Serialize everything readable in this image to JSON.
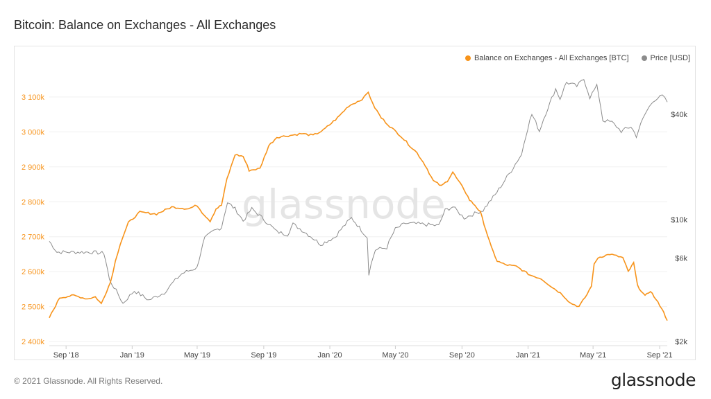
{
  "page": {
    "title": "Bitcoin: Balance on Exchanges - All Exchanges",
    "footer": "© 2021 Glassnode. All Rights Reserved.",
    "logo": "glassnode",
    "watermark": "glassnode"
  },
  "colors": {
    "balance": "#f7931a",
    "price": "#8c8c8c"
  },
  "chart_data": {
    "type": "line",
    "title": "Bitcoin: Balance on Exchanges - All Exchanges",
    "x_ticks": [
      "Sep '18",
      "Jan '19",
      "May '19",
      "Sep '19",
      "Jan '20",
      "May '20",
      "Sep '20",
      "Jan '21",
      "May '21",
      "Sep '21"
    ],
    "y_left": {
      "ticks": [
        "2 400k",
        "2 500k",
        "2 600k",
        "2 700k",
        "2 800k",
        "2 900k",
        "3 000k",
        "3 100k"
      ],
      "min": 2400000,
      "max": 3100000,
      "color": "#f7931a"
    },
    "y_right": {
      "ticks": [
        "$2k",
        "$6k",
        "$10k",
        "$40k"
      ],
      "scale": "log",
      "color": "#444444"
    },
    "legend_position": "top-right",
    "grid": true,
    "series": [
      {
        "name": "Balance on Exchanges - All Exchanges [BTC]",
        "axis": "left",
        "color": "#f7931a",
        "points": [
          [
            "2018-08-01",
            2468000
          ],
          [
            "2018-08-20",
            2525000
          ],
          [
            "2018-09-15",
            2532000
          ],
          [
            "2018-10-10",
            2522000
          ],
          [
            "2018-10-25",
            2528000
          ],
          [
            "2018-11-05",
            2508000
          ],
          [
            "2018-11-15",
            2545000
          ],
          [
            "2018-11-22",
            2570000
          ],
          [
            "2018-12-01",
            2630000
          ],
          [
            "2018-12-10",
            2680000
          ],
          [
            "2018-12-25",
            2740000
          ],
          [
            "2019-01-15",
            2770000
          ],
          [
            "2019-02-15",
            2765000
          ],
          [
            "2019-03-15",
            2785000
          ],
          [
            "2019-04-15",
            2780000
          ],
          [
            "2019-05-01",
            2790000
          ],
          [
            "2019-05-10",
            2770000
          ],
          [
            "2019-05-25",
            2745000
          ],
          [
            "2019-06-05",
            2780000
          ],
          [
            "2019-06-15",
            2790000
          ],
          [
            "2019-06-25",
            2865000
          ],
          [
            "2019-07-10",
            2935000
          ],
          [
            "2019-07-25",
            2930000
          ],
          [
            "2019-08-05",
            2890000
          ],
          [
            "2019-08-25",
            2895000
          ],
          [
            "2019-09-10",
            2960000
          ],
          [
            "2019-09-25",
            2985000
          ],
          [
            "2019-10-20",
            2990000
          ],
          [
            "2019-11-10",
            2995000
          ],
          [
            "2019-12-01",
            2990000
          ],
          [
            "2019-12-20",
            3005000
          ],
          [
            "2020-01-15",
            3040000
          ],
          [
            "2020-02-05",
            3075000
          ],
          [
            "2020-02-25",
            3090000
          ],
          [
            "2020-03-05",
            3100000
          ],
          [
            "2020-03-12",
            3115000
          ],
          [
            "2020-03-20",
            3080000
          ],
          [
            "2020-04-05",
            3040000
          ],
          [
            "2020-04-25",
            3010000
          ],
          [
            "2020-05-10",
            2990000
          ],
          [
            "2020-05-25",
            2965000
          ],
          [
            "2020-06-10",
            2940000
          ],
          [
            "2020-06-25",
            2905000
          ],
          [
            "2020-07-10",
            2860000
          ],
          [
            "2020-07-25",
            2845000
          ],
          [
            "2020-08-05",
            2860000
          ],
          [
            "2020-08-15",
            2885000
          ],
          [
            "2020-08-25",
            2860000
          ],
          [
            "2020-09-05",
            2835000
          ],
          [
            "2020-09-15",
            2805000
          ],
          [
            "2020-09-25",
            2790000
          ],
          [
            "2020-10-05",
            2770000
          ],
          [
            "2020-10-15",
            2720000
          ],
          [
            "2020-10-25",
            2670000
          ],
          [
            "2020-11-05",
            2630000
          ],
          [
            "2020-11-20",
            2620000
          ],
          [
            "2020-12-10",
            2615000
          ],
          [
            "2021-01-05",
            2590000
          ],
          [
            "2021-01-25",
            2580000
          ],
          [
            "2021-02-15",
            2555000
          ],
          [
            "2021-03-05",
            2535000
          ],
          [
            "2021-03-20",
            2510000
          ],
          [
            "2021-04-05",
            2500000
          ],
          [
            "2021-04-20",
            2535000
          ],
          [
            "2021-04-28",
            2560000
          ],
          [
            "2021-05-03",
            2620000
          ],
          [
            "2021-05-10",
            2640000
          ],
          [
            "2021-06-01",
            2650000
          ],
          [
            "2021-06-25",
            2640000
          ],
          [
            "2021-07-05",
            2600000
          ],
          [
            "2021-07-15",
            2625000
          ],
          [
            "2021-07-22",
            2560000
          ],
          [
            "2021-08-05",
            2530000
          ],
          [
            "2021-08-15",
            2545000
          ],
          [
            "2021-08-25",
            2520000
          ],
          [
            "2021-09-05",
            2495000
          ],
          [
            "2021-09-15",
            2460000
          ]
        ]
      },
      {
        "name": "Price [USD]",
        "axis": "right",
        "color": "#8c8c8c",
        "points": [
          [
            "2018-08-01",
            7500
          ],
          [
            "2018-08-15",
            6500
          ],
          [
            "2018-09-15",
            6500
          ],
          [
            "2018-10-15",
            6500
          ],
          [
            "2018-11-10",
            6400
          ],
          [
            "2018-11-20",
            4500
          ],
          [
            "2018-12-15",
            3300
          ],
          [
            "2019-01-05",
            3900
          ],
          [
            "2019-02-01",
            3450
          ],
          [
            "2019-03-01",
            3800
          ],
          [
            "2019-04-03",
            4900
          ],
          [
            "2019-05-01",
            5300
          ],
          [
            "2019-05-15",
            7800
          ],
          [
            "2019-06-01",
            8600
          ],
          [
            "2019-06-15",
            9000
          ],
          [
            "2019-06-26",
            12500
          ],
          [
            "2019-07-10",
            11500
          ],
          [
            "2019-07-25",
            9800
          ],
          [
            "2019-08-10",
            11500
          ],
          [
            "2019-09-01",
            10000
          ],
          [
            "2019-09-25",
            8500
          ],
          [
            "2019-10-15",
            8200
          ],
          [
            "2019-10-25",
            9400
          ],
          [
            "2019-11-15",
            8500
          ],
          [
            "2019-12-15",
            7200
          ],
          [
            "2020-01-10",
            7900
          ],
          [
            "2020-02-10",
            10200
          ],
          [
            "2020-02-28",
            8700
          ],
          [
            "2020-03-10",
            7900
          ],
          [
            "2020-03-13",
            4900
          ],
          [
            "2020-03-25",
            6700
          ],
          [
            "2020-04-15",
            6900
          ],
          [
            "2020-05-01",
            8800
          ],
          [
            "2020-05-20",
            9500
          ],
          [
            "2020-06-20",
            9400
          ],
          [
            "2020-07-20",
            9200
          ],
          [
            "2020-08-01",
            11300
          ],
          [
            "2020-08-15",
            11800
          ],
          [
            "2020-09-05",
            10200
          ],
          [
            "2020-10-10",
            11300
          ],
          [
            "2020-11-01",
            13800
          ],
          [
            "2020-11-15",
            16000
          ],
          [
            "2020-12-01",
            19000
          ],
          [
            "2020-12-20",
            23500
          ],
          [
            "2021-01-08",
            40000
          ],
          [
            "2021-01-22",
            32000
          ],
          [
            "2021-02-10",
            46000
          ],
          [
            "2021-02-21",
            56000
          ],
          [
            "2021-03-01",
            49000
          ],
          [
            "2021-03-13",
            61000
          ],
          [
            "2021-04-01",
            58000
          ],
          [
            "2021-04-14",
            63500
          ],
          [
            "2021-04-25",
            50000
          ],
          [
            "2021-05-08",
            58000
          ],
          [
            "2021-05-19",
            37000
          ],
          [
            "2021-06-05",
            36000
          ],
          [
            "2021-06-22",
            32000
          ],
          [
            "2021-07-10",
            34000
          ],
          [
            "2021-07-20",
            30000
          ],
          [
            "2021-08-05",
            40000
          ],
          [
            "2021-08-20",
            48000
          ],
          [
            "2021-09-06",
            51000
          ],
          [
            "2021-09-15",
            47000
          ]
        ]
      }
    ]
  }
}
